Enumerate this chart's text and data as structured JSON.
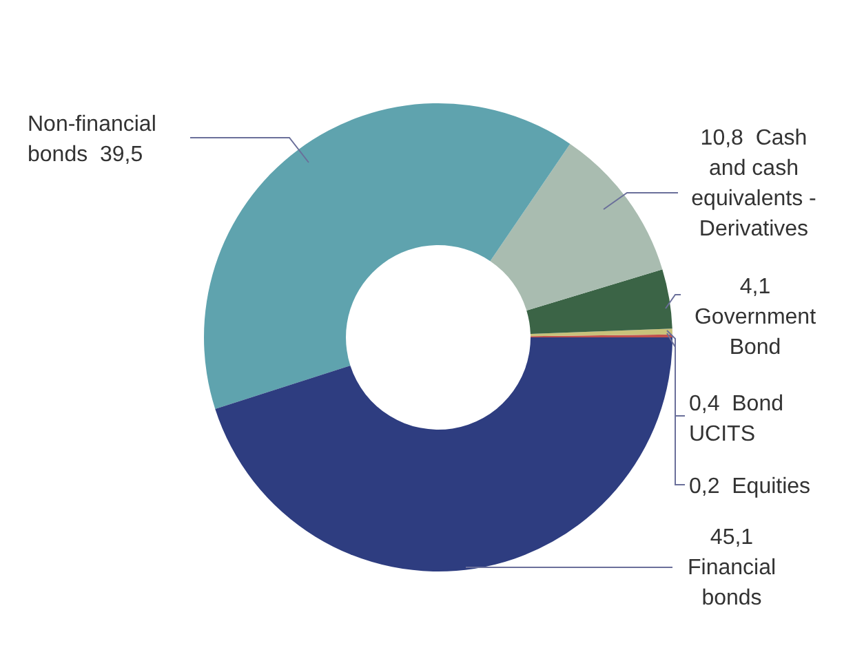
{
  "chart_data": {
    "type": "donut",
    "categories": [
      "Equities",
      "Bond UCITS",
      "Government Bond",
      "Cash and cash equivalents - Derivatives",
      "Non-financial bonds",
      "Financial bonds"
    ],
    "values": [
      0.2,
      0.4,
      4.1,
      10.8,
      39.5,
      45.1
    ],
    "value_labels": [
      "0,2",
      "0,4",
      "4,1",
      "10,8",
      "39,5",
      "45,1"
    ],
    "colors": [
      "#c0504d",
      "#c9c27a",
      "#3b6446",
      "#a9bcb0",
      "#5fa3ae",
      "#2e3d80"
    ]
  }
}
